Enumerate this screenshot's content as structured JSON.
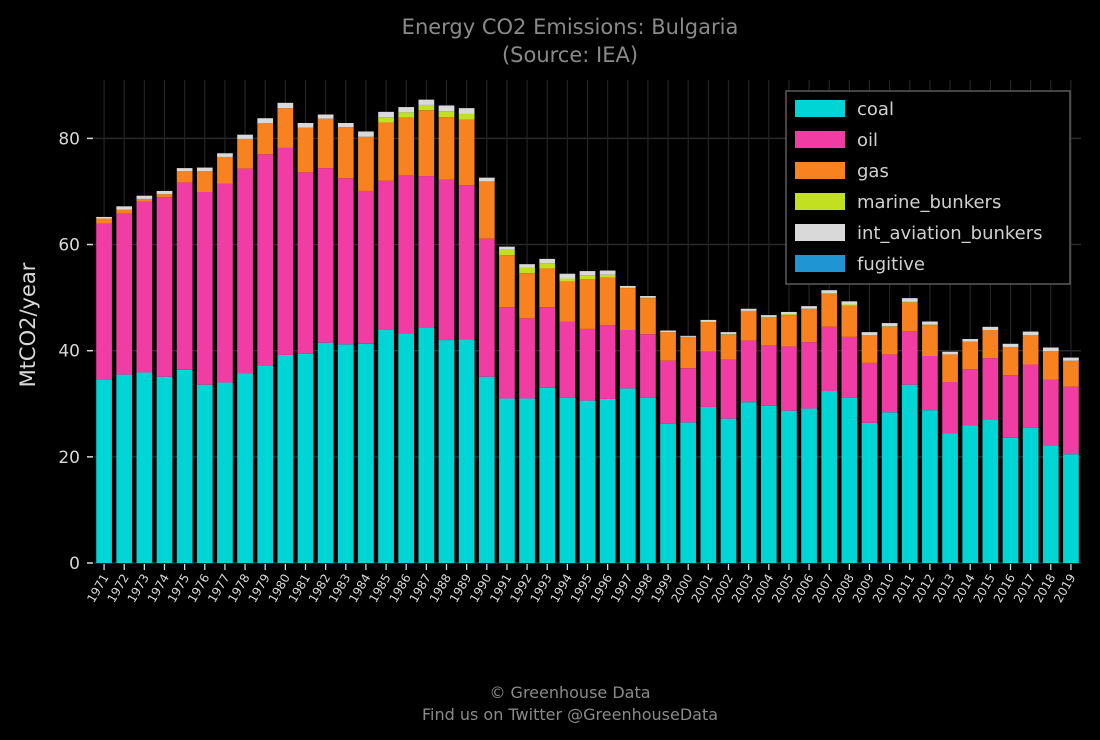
{
  "chart_data": {
    "type": "bar",
    "stacked": true,
    "title": "Energy CO2 Emissions: Bulgaria",
    "subtitle": "(Source: IEA)",
    "ylabel": "MtCO2/year",
    "xlabel": "",
    "ylim": [
      0,
      91
    ],
    "yticks": [
      0,
      20,
      40,
      60,
      80
    ],
    "grid": true,
    "legend_position": "top-right",
    "categories": [
      "1971",
      "1972",
      "1973",
      "1974",
      "1975",
      "1976",
      "1977",
      "1978",
      "1979",
      "1980",
      "1981",
      "1982",
      "1983",
      "1984",
      "1985",
      "1986",
      "1987",
      "1988",
      "1989",
      "1990",
      "1991",
      "1992",
      "1993",
      "1994",
      "1995",
      "1996",
      "1997",
      "1998",
      "1999",
      "2000",
      "2001",
      "2002",
      "2003",
      "2004",
      "2005",
      "2006",
      "2007",
      "2008",
      "2009",
      "2010",
      "2011",
      "2012",
      "2013",
      "2014",
      "2015",
      "2016",
      "2017",
      "2018",
      "2019"
    ],
    "series": [
      {
        "name": "coal",
        "color": "#00d5d5",
        "values": [
          34.6,
          35.5,
          35.9,
          35.1,
          36.4,
          33.6,
          34.0,
          35.7,
          37.2,
          39.2,
          39.4,
          41.5,
          41.2,
          41.3,
          43.9,
          43.3,
          44.4,
          42.0,
          42.1,
          35.1,
          31.0,
          31.0,
          33.0,
          31.1,
          30.6,
          30.9,
          32.9,
          31.1,
          26.2,
          26.5,
          29.4,
          27.2,
          30.3,
          29.6,
          28.7,
          29.1,
          32.4,
          31.1,
          26.4,
          28.4,
          33.6,
          28.8,
          24.4,
          25.9,
          27.1,
          23.6,
          25.5,
          22.2,
          20.5
        ]
      },
      {
        "name": "oil",
        "color": "#f03ca3",
        "values": [
          29.3,
          30.3,
          32.2,
          33.8,
          35.3,
          36.3,
          37.5,
          38.6,
          39.8,
          39.0,
          34.2,
          32.9,
          31.3,
          28.8,
          28.1,
          29.8,
          28.5,
          30.2,
          29.1,
          26.0,
          17.2,
          15.1,
          15.2,
          14.4,
          13.5,
          13.9,
          11.0,
          12.0,
          11.9,
          10.2,
          10.4,
          11.1,
          11.6,
          11.4,
          12.1,
          12.5,
          12.1,
          11.5,
          11.3,
          10.9,
          10.1,
          10.2,
          9.7,
          10.6,
          11.5,
          11.8,
          11.9,
          12.3,
          12.7
        ]
      },
      {
        "name": "gas",
        "color": "#f8821f",
        "values": [
          1.0,
          0.8,
          0.5,
          0.6,
          2.1,
          3.9,
          5.0,
          5.6,
          5.9,
          7.5,
          8.4,
          9.3,
          9.6,
          10.2,
          11.0,
          10.8,
          12.4,
          11.8,
          12.3,
          10.8,
          9.8,
          8.5,
          7.3,
          7.5,
          9.4,
          9.0,
          7.9,
          6.8,
          5.4,
          5.9,
          5.6,
          4.7,
          5.5,
          5.2,
          5.9,
          6.2,
          6.2,
          5.9,
          5.1,
          5.2,
          5.4,
          5.8,
          5.2,
          5.2,
          5.3,
          5.3,
          5.5,
          5.4,
          4.9
        ]
      },
      {
        "name": "marine_bunkers",
        "color": "#c2e01f",
        "values": [
          0,
          0,
          0,
          0,
          0,
          0,
          0,
          0,
          0,
          0,
          0,
          0,
          0,
          0,
          1.0,
          1.0,
          1.0,
          1.1,
          1.1,
          0,
          1.0,
          1.0,
          1.0,
          0.6,
          0.7,
          0.5,
          0.1,
          0.1,
          0,
          0,
          0.1,
          0.1,
          0.1,
          0.1,
          0.2,
          0.1,
          0.1,
          0.2,
          0.1,
          0.1,
          0.1,
          0.1,
          0,
          0,
          0,
          0,
          0,
          0,
          0
        ]
      },
      {
        "name": "int_aviation_bunkers",
        "color": "#d9d9d9",
        "values": [
          0.3,
          0.6,
          0.6,
          0.6,
          0.6,
          0.7,
          0.7,
          0.8,
          0.9,
          1.0,
          0.9,
          0.8,
          0.8,
          1.0,
          1.0,
          1.0,
          1.0,
          1.1,
          1.1,
          0.7,
          0.6,
          0.7,
          0.8,
          0.9,
          0.8,
          0.8,
          0.3,
          0.3,
          0.3,
          0.2,
          0.3,
          0.4,
          0.4,
          0.4,
          0.4,
          0.5,
          0.6,
          0.6,
          0.6,
          0.6,
          0.7,
          0.6,
          0.5,
          0.5,
          0.6,
          0.6,
          0.7,
          0.7,
          0.6
        ]
      },
      {
        "name": "fugitive",
        "color": "#1f96d3",
        "values": [
          0,
          0,
          0,
          0,
          0,
          0,
          0,
          0,
          0,
          0,
          0,
          0,
          0,
          0,
          0,
          0,
          0,
          0,
          0,
          0,
          0,
          0,
          0,
          0,
          0,
          0,
          0,
          0,
          0,
          0,
          0,
          0,
          0,
          0,
          0,
          0,
          0,
          0,
          0,
          0,
          0,
          0,
          0,
          0,
          0,
          0,
          0,
          0,
          0
        ]
      }
    ]
  },
  "footer": {
    "line1": "© Greenhouse Data",
    "line2": "Find us on Twitter @GreenhouseData"
  }
}
